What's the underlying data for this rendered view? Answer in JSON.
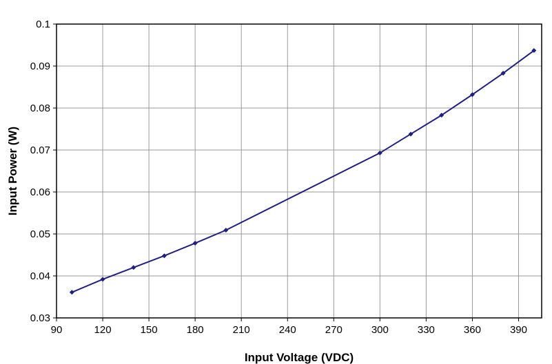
{
  "chart_data": {
    "type": "line",
    "title": "",
    "xlabel": "Input Voltage (VDC)",
    "ylabel": "Input Power (W)",
    "xlim": [
      90,
      405
    ],
    "ylim": [
      0.03,
      0.1
    ],
    "x_ticks": [
      "90",
      "120",
      "150",
      "180",
      "210",
      "240",
      "270",
      "300",
      "330",
      "360",
      "390"
    ],
    "y_ticks": [
      "0.03",
      "0.04",
      "0.05",
      "0.06",
      "0.07",
      "0.08",
      "0.09",
      "0.1"
    ],
    "grid": true,
    "legend": "none",
    "series": [
      {
        "color": "#1f1f80",
        "marker": "diamond",
        "x": [
          100,
          120,
          140,
          160,
          180,
          200,
          300,
          320,
          340,
          360,
          380,
          400
        ],
        "y": [
          0.0361,
          0.0392,
          0.042,
          0.0448,
          0.0478,
          0.0509,
          0.0693,
          0.0738,
          0.0783,
          0.0832,
          0.0883,
          0.0937
        ]
      }
    ]
  }
}
